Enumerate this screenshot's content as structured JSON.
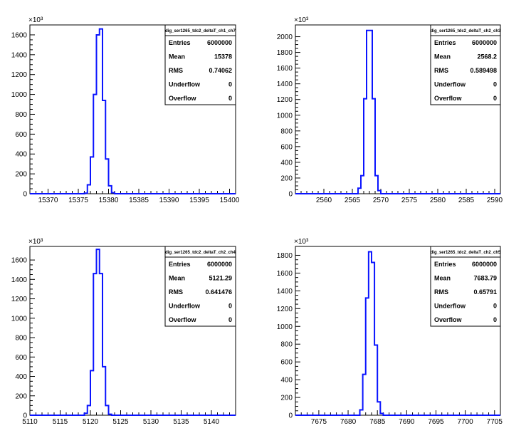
{
  "colors": {
    "histogram": "#0a14ff",
    "axis": "#000000",
    "frame": "#000000",
    "background": "#ffffff"
  },
  "chart_data": [
    {
      "type": "bar",
      "histogram_style": "step",
      "stats": {
        "title": "dig_ser1265_tdc2_deltaT_ch1_ch7",
        "rows": [
          {
            "label": "Entries",
            "value": "6000000"
          },
          {
            "label": "Mean",
            "value": "15378"
          },
          {
            "label": "RMS",
            "value": "0.74062"
          },
          {
            "label": "Underflow",
            "value": "0"
          },
          {
            "label": "Overflow",
            "value": "0"
          }
        ]
      },
      "y_exponent_label": "×10³",
      "xlim": [
        15367,
        15401
      ],
      "ylim": [
        0,
        1700
      ],
      "xticks": [
        15370,
        15375,
        15380,
        15385,
        15390,
        15395,
        15400
      ],
      "yticks": [
        0,
        200,
        400,
        600,
        800,
        1000,
        1200,
        1400,
        1600
      ],
      "bin_width": 0.5,
      "bins": [
        {
          "x0": 15376,
          "y": 5
        },
        {
          "x0": 15376.5,
          "y": 90
        },
        {
          "x0": 15377,
          "y": 370
        },
        {
          "x0": 15377.5,
          "y": 1000
        },
        {
          "x0": 15378,
          "y": 1600
        },
        {
          "x0": 15378.5,
          "y": 1660
        },
        {
          "x0": 15379,
          "y": 940
        },
        {
          "x0": 15379.5,
          "y": 350
        },
        {
          "x0": 15380,
          "y": 80
        },
        {
          "x0": 15380.5,
          "y": 10
        }
      ]
    },
    {
      "type": "bar",
      "histogram_style": "step",
      "stats": {
        "title": "dig_ser1265_tdc2_deltaT_ch2_ch3",
        "rows": [
          {
            "label": "Entries",
            "value": "6000000"
          },
          {
            "label": "Mean",
            "value": "2568.2"
          },
          {
            "label": "RMS",
            "value": "0.589498"
          },
          {
            "label": "Underflow",
            "value": "0"
          },
          {
            "label": "Overflow",
            "value": "0"
          }
        ]
      },
      "y_exponent_label": "×10³",
      "xlim": [
        2555,
        2591
      ],
      "ylim": [
        0,
        2150
      ],
      "xticks": [
        2560,
        2565,
        2570,
        2575,
        2580,
        2585,
        2590
      ],
      "yticks": [
        0,
        200,
        400,
        600,
        800,
        1000,
        1200,
        1400,
        1600,
        1800,
        2000
      ],
      "bin_width": 0.5,
      "bins": [
        {
          "x0": 2566,
          "y": 70
        },
        {
          "x0": 2566.5,
          "y": 230
        },
        {
          "x0": 2567,
          "y": 1210
        },
        {
          "x0": 2567.5,
          "y": 2080
        },
        {
          "x0": 2568,
          "y": 2080
        },
        {
          "x0": 2568.5,
          "y": 1210
        },
        {
          "x0": 2569,
          "y": 230
        },
        {
          "x0": 2569.5,
          "y": 40
        }
      ]
    },
    {
      "type": "bar",
      "histogram_style": "step",
      "stats": {
        "title": "dig_ser1265_tdc2_deltaT_ch2_ch4",
        "rows": [
          {
            "label": "Entries",
            "value": "6000000"
          },
          {
            "label": "Mean",
            "value": "5121.29"
          },
          {
            "label": "RMS",
            "value": "0.641476"
          },
          {
            "label": "Underflow",
            "value": "0"
          },
          {
            "label": "Overflow",
            "value": "0"
          }
        ]
      },
      "y_exponent_label": "×10³",
      "xlim": [
        5110,
        5144
      ],
      "ylim": [
        0,
        1740
      ],
      "xticks": [
        5110,
        5115,
        5120,
        5125,
        5130,
        5135,
        5140
      ],
      "yticks": [
        0,
        200,
        400,
        600,
        800,
        1000,
        1200,
        1400,
        1600
      ],
      "bin_width": 0.5,
      "bins": [
        {
          "x0": 5119,
          "y": 20
        },
        {
          "x0": 5119.5,
          "y": 100
        },
        {
          "x0": 5120,
          "y": 460
        },
        {
          "x0": 5120.5,
          "y": 1460
        },
        {
          "x0": 5121,
          "y": 1710
        },
        {
          "x0": 5121.5,
          "y": 1460
        },
        {
          "x0": 5122,
          "y": 500
        },
        {
          "x0": 5122.5,
          "y": 100
        },
        {
          "x0": 5123,
          "y": 10
        }
      ]
    },
    {
      "type": "bar",
      "histogram_style": "step",
      "stats": {
        "title": "dig_ser1265_tdc2_deltaT_ch2_ch5",
        "rows": [
          {
            "label": "Entries",
            "value": "6000000"
          },
          {
            "label": "Mean",
            "value": "7683.79"
          },
          {
            "label": "RMS",
            "value": "0.65791"
          },
          {
            "label": "Underflow",
            "value": "0"
          },
          {
            "label": "Overflow",
            "value": "0"
          }
        ]
      },
      "y_exponent_label": "×10³",
      "xlim": [
        7671,
        7706
      ],
      "ylim": [
        0,
        1900
      ],
      "xticks": [
        7675,
        7680,
        7685,
        7690,
        7695,
        7700,
        7705
      ],
      "yticks": [
        0,
        200,
        400,
        600,
        800,
        1000,
        1200,
        1400,
        1600,
        1800
      ],
      "bin_width": 0.5,
      "bins": [
        {
          "x0": 7682,
          "y": 60
        },
        {
          "x0": 7682.5,
          "y": 460
        },
        {
          "x0": 7683,
          "y": 1320
        },
        {
          "x0": 7683.5,
          "y": 1840
        },
        {
          "x0": 7684,
          "y": 1720
        },
        {
          "x0": 7684.5,
          "y": 790
        },
        {
          "x0": 7685,
          "y": 150
        },
        {
          "x0": 7685.5,
          "y": 20
        }
      ]
    }
  ]
}
